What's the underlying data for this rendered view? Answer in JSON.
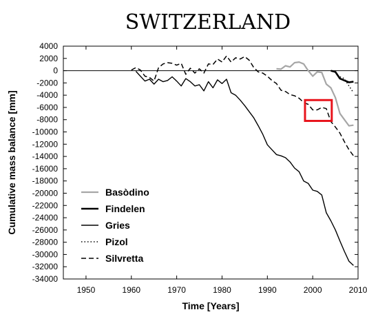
{
  "chart_data": {
    "type": "line",
    "title": "SWITZERLAND",
    "xlabel": "Time [Years]",
    "ylabel": "Cumulative mass balance [mm]",
    "xlim": [
      1945,
      2010
    ],
    "ylim": [
      -34000,
      4000
    ],
    "xticks": [
      1950,
      1960,
      1970,
      1980,
      1990,
      2000,
      2010
    ],
    "yticks": [
      4000,
      2000,
      0,
      -2000,
      -4000,
      -6000,
      -8000,
      -10000,
      -12000,
      -14000,
      -16000,
      -18000,
      -20000,
      -22000,
      -24000,
      -26000,
      -28000,
      -30000,
      -32000,
      -34000
    ],
    "grid": false,
    "zero_line": true,
    "legend": "bottom-left",
    "highlight_box": {
      "x": [
        1998.3,
        2004.2
      ],
      "y": [
        -8200,
        -4800
      ],
      "color": "#e8141c"
    },
    "series": [
      {
        "name": "Basòdino",
        "color": "#a6a6a6",
        "style": "solid",
        "width": 2.2,
        "x": [
          1992,
          1993,
          1994,
          1995,
          1996,
          1997,
          1998,
          1999,
          2000,
          2001,
          2002,
          2003,
          2004,
          2005,
          2006,
          2007,
          2008,
          2009
        ],
        "y": [
          300,
          250,
          800,
          600,
          1300,
          1400,
          1100,
          0,
          -900,
          -200,
          -300,
          -2200,
          -2800,
          -4400,
          -7000,
          -8000,
          -9000,
          -8900
        ]
      },
      {
        "name": "Findelen",
        "color": "#000000",
        "style": "solid",
        "width": 2.6,
        "x": [
          2004,
          2005,
          2006,
          2007,
          2008,
          2009
        ],
        "y": [
          0,
          -200,
          -1300,
          -1600,
          -1900,
          -1800
        ]
      },
      {
        "name": "Gries",
        "color": "#000000",
        "style": "solid",
        "width": 1.4,
        "x": [
          1961,
          1962,
          1963,
          1964,
          1965,
          1966,
          1967,
          1968,
          1969,
          1970,
          1971,
          1972,
          1973,
          1974,
          1975,
          1976,
          1977,
          1978,
          1979,
          1980,
          1981,
          1982,
          1983,
          1984,
          1985,
          1986,
          1987,
          1988,
          1989,
          1990,
          1991,
          1992,
          1993,
          1994,
          1995,
          1996,
          1997,
          1998,
          1999,
          2000,
          2001,
          2002,
          2003,
          2004,
          2005,
          2006,
          2007,
          2008,
          2009
        ],
        "y": [
          -100,
          -900,
          -1700,
          -1400,
          -2200,
          -1400,
          -1800,
          -1600,
          -1000,
          -1700,
          -2500,
          -1300,
          -1800,
          -2500,
          -2300,
          -3300,
          -1800,
          -2800,
          -1500,
          -2100,
          -1400,
          -3600,
          -4000,
          -4800,
          -5700,
          -6700,
          -7700,
          -9000,
          -10400,
          -12100,
          -12900,
          -13700,
          -13900,
          -14200,
          -14900,
          -15900,
          -16500,
          -18000,
          -18400,
          -19500,
          -19700,
          -20300,
          -23200,
          -24500,
          -26000,
          -27800,
          -29500,
          -31100,
          -31800
        ]
      },
      {
        "name": "Pizol",
        "color": "#000000",
        "style": "dotted",
        "width": 1.5,
        "x": [
          2006,
          2007,
          2008,
          2009
        ],
        "y": [
          -1000,
          -1300,
          -2500,
          -3600
        ]
      },
      {
        "name": "Silvretta",
        "color": "#000000",
        "style": "dashed",
        "width": 1.5,
        "x": [
          1960,
          1961,
          1962,
          1963,
          1964,
          1965,
          1966,
          1967,
          1968,
          1969,
          1970,
          1971,
          1972,
          1973,
          1974,
          1975,
          1976,
          1977,
          1978,
          1979,
          1980,
          1981,
          1982,
          1983,
          1984,
          1985,
          1986,
          1987,
          1988,
          1989,
          1990,
          1991,
          1992,
          1993,
          1994,
          1995,
          1996,
          1997,
          1998,
          1999,
          2000,
          2001,
          2002,
          2003,
          2004,
          2005,
          2006,
          2007,
          2008,
          2009
        ],
        "y": [
          100,
          500,
          100,
          -900,
          -1100,
          -1700,
          500,
          1100,
          1300,
          1200,
          900,
          1200,
          -600,
          400,
          -400,
          300,
          -400,
          1100,
          1000,
          1900,
          1400,
          2400,
          1400,
          2100,
          1900,
          2300,
          1700,
          500,
          -200,
          -400,
          -900,
          -1600,
          -2100,
          -3200,
          -3400,
          -3900,
          -4100,
          -4500,
          -5200,
          -5500,
          -6400,
          -6400,
          -6000,
          -6200,
          -8300,
          -9200,
          -10200,
          -11600,
          -12900,
          -13900
        ]
      }
    ]
  }
}
